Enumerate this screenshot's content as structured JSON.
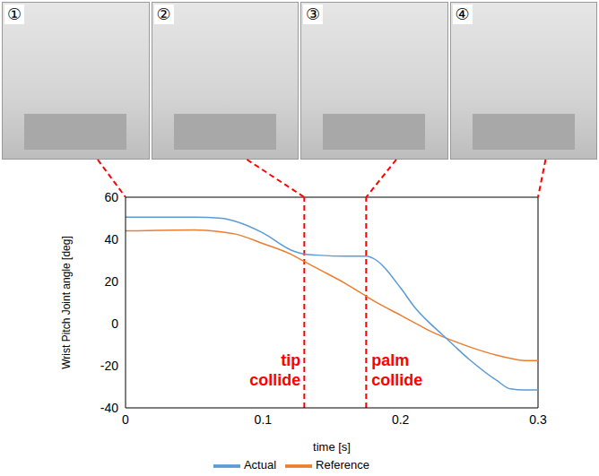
{
  "chart_data": {
    "type": "line",
    "x_label": "time [s]",
    "y_label": "Wrist Pitch  Joint angle [deg]",
    "x": [
      0,
      0.05,
      0.07,
      0.08,
      0.1,
      0.12,
      0.13,
      0.14,
      0.16,
      0.175,
      0.18,
      0.2,
      0.21,
      0.22,
      0.23,
      0.25,
      0.27,
      0.28,
      0.29,
      0.3
    ],
    "series": [
      {
        "name": "Reference",
        "color": "#ed7d31",
        "values": [
          44,
          44.5,
          43.5,
          42.5,
          38,
          33,
          29.5,
          26,
          19,
          13,
          11,
          4,
          0.5,
          -3,
          -6,
          -11,
          -15,
          -16.5,
          -17.5,
          -17.5
        ]
      },
      {
        "name": "Actual",
        "color": "#5b9bd5",
        "values": [
          50.5,
          50.5,
          50,
          48.5,
          43,
          35,
          33,
          32.5,
          32,
          32,
          31,
          17,
          8,
          1,
          -5,
          -17,
          -27,
          -31,
          -31.5,
          -31.5
        ]
      }
    ],
    "xlim": [
      0,
      0.3
    ],
    "xticks": [
      0,
      0.1,
      0.2,
      0.3
    ],
    "ylim": [
      -40,
      60
    ],
    "yticks": [
      -40,
      -20,
      0,
      20,
      40,
      60
    ],
    "grid": false,
    "legend": "bottom",
    "annotations": [
      {
        "text": "tip collide",
        "x": 0.13,
        "color": "#ff0000"
      },
      {
        "text": "palm collide",
        "x": 0.175,
        "color": "#ff0000"
      }
    ],
    "panels": [
      {
        "label": "①",
        "time": 0
      },
      {
        "label": "②",
        "time": 0.13
      },
      {
        "label": "③",
        "time": 0.175
      },
      {
        "label": "④",
        "time": 0.3
      }
    ]
  }
}
